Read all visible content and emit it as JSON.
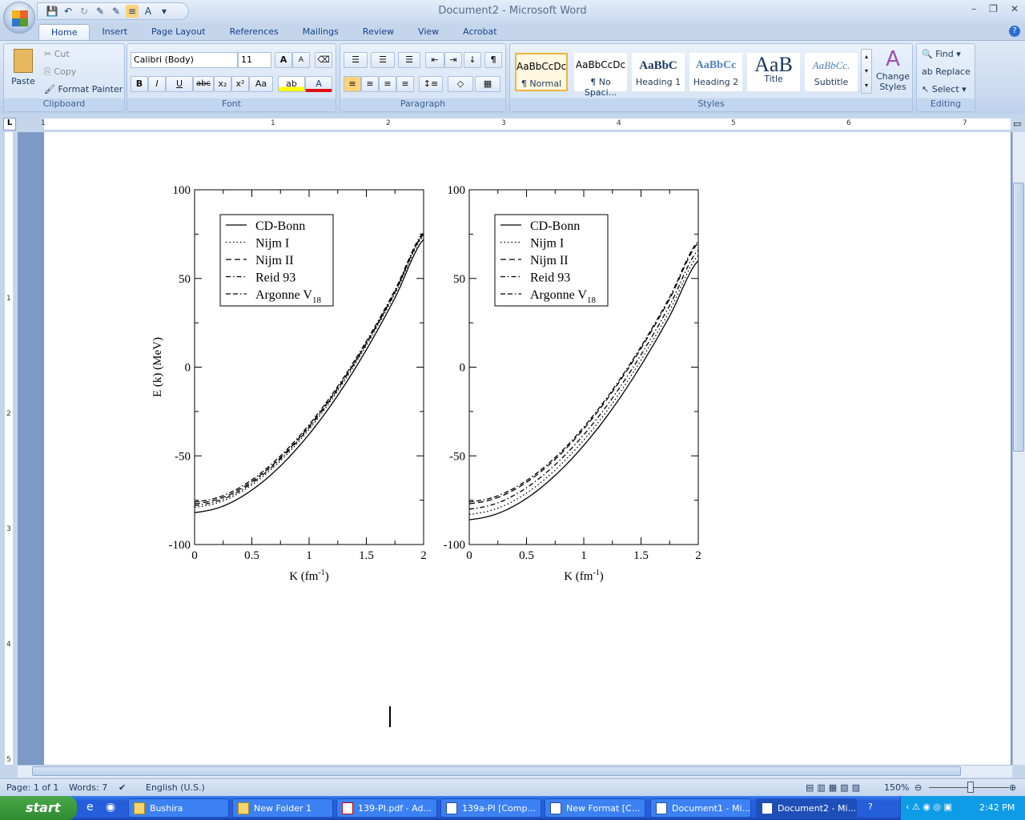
{
  "window": {
    "title": "Document2 - Microsoft Word",
    "controls": [
      "–",
      "❐",
      "✕"
    ]
  },
  "qat": [
    "save",
    "undo",
    "redo",
    "draw",
    "draw2",
    "align",
    "style"
  ],
  "tabs": [
    "Home",
    "Insert",
    "Page Layout",
    "References",
    "Mailings",
    "Review",
    "View",
    "Acrobat"
  ],
  "clipboard": {
    "paste": "Paste",
    "cut": "Cut",
    "copy": "Copy",
    "format_painter": "Format Painter",
    "label": "Clipboard"
  },
  "font": {
    "name": "Calibri (Body)",
    "size": "11",
    "label": "Font",
    "bold": "B",
    "italic": "I",
    "underline": "U",
    "strike": "abc",
    "sub": "x₂",
    "sup": "x²",
    "case": "Aa",
    "grow": "A",
    "shrink": "A",
    "color": "#e01010"
  },
  "paragraph": {
    "label": "Paragraph",
    "pilcrow": "¶"
  },
  "styles": {
    "label": "Styles",
    "items": [
      {
        "preview": "AaBbCcDc",
        "name": "¶ Normal"
      },
      {
        "preview": "AaBbCcDc",
        "name": "¶ No Spaci..."
      },
      {
        "preview": "AaBbC",
        "name": "Heading 1"
      },
      {
        "preview": "AaBbCc",
        "name": "Heading 2"
      },
      {
        "preview": "AaB",
        "name": "Title"
      },
      {
        "preview": "AaBbCc.",
        "name": "Subtitle"
      }
    ],
    "change_styles": "Change Styles"
  },
  "editing": {
    "label": "Editing",
    "find": "Find",
    "replace": "Replace",
    "select": "Select"
  },
  "ruler": {
    "h": [
      "1",
      "1",
      "2",
      "3",
      "4",
      "5",
      "6",
      "7"
    ],
    "v": [
      "1",
      "2",
      "3",
      "4",
      "5"
    ]
  },
  "chart_data": [
    {
      "type": "line",
      "xlabel": "K (fm",
      "xlabel_sup": "-1",
      "xlabel_end": ")",
      "ylabel": "E (k) (MeV)",
      "xlim": [
        0,
        2
      ],
      "ylim": [
        -100,
        100
      ],
      "xticks": [
        "0",
        "0.5",
        "1",
        "1.5",
        "2"
      ],
      "yticks": [
        "-100",
        "-50",
        "0",
        "50",
        "100"
      ],
      "legend": "top-left",
      "x": [
        0,
        0.25,
        0.5,
        0.75,
        1,
        1.25,
        1.5,
        1.75,
        2
      ],
      "series": [
        {
          "name": "CD-Bonn",
          "values": [
            -82,
            -78.3,
            -69.3,
            -55.7,
            -37.8,
            -15.9,
            9.8,
            39.1,
            72
          ]
        },
        {
          "name": "Nijm I",
          "values": [
            -79,
            -75.4,
            -66.4,
            -52.8,
            -35.1,
            -13.4,
            12.2,
            41.3,
            74
          ]
        },
        {
          "name": "Nijm II",
          "values": [
            -77,
            -73.4,
            -64.5,
            -51,
            -33.4,
            -11.8,
            13.6,
            42.5,
            75
          ]
        },
        {
          "name": "Reid 93",
          "values": [
            -78,
            -74.4,
            -65.4,
            -51.8,
            -34.1,
            -12.4,
            13.2,
            42.3,
            75
          ]
        },
        {
          "name": "Argonne V",
          "name_sub": "18",
          "values": [
            -76,
            -72.4,
            -63.5,
            -50,
            -32.4,
            -10.8,
            14.6,
            43.5,
            76
          ]
        }
      ]
    },
    {
      "type": "line",
      "xlabel": "K (fm",
      "xlabel_sup": "-1",
      "xlabel_end": ")",
      "ylabel": "",
      "xlim": [
        0,
        2
      ],
      "ylim": [
        -100,
        100
      ],
      "xticks": [
        "0",
        "0.5",
        "1",
        "1.5",
        "2"
      ],
      "yticks": [
        "-100",
        "-50",
        "0",
        "50",
        "100"
      ],
      "legend": "top-left",
      "x": [
        0,
        0.25,
        0.5,
        0.75,
        1,
        1.25,
        1.5,
        1.75,
        2
      ],
      "series": [
        {
          "name": "CD-Bonn",
          "values": [
            -86,
            -82.5,
            -74,
            -61,
            -44.1,
            -23.4,
            1,
            28.8,
            60
          ]
        },
        {
          "name": "Nijm I",
          "values": [
            -83,
            -79.5,
            -71,
            -58,
            -41.1,
            -20.4,
            4,
            31.8,
            63
          ]
        },
        {
          "name": "Nijm II",
          "values": [
            -77,
            -73.5,
            -64.9,
            -51.9,
            -34.8,
            -13.9,
            10.6,
            38.5,
            70
          ]
        },
        {
          "name": "Reid 93",
          "values": [
            -80,
            -76.5,
            -68,
            -55,
            -38.1,
            -17.4,
            7,
            34.8,
            66
          ]
        },
        {
          "name": "Argonne V",
          "name_sub": "18",
          "values": [
            -76,
            -72.5,
            -63.9,
            -50.9,
            -33.8,
            -12.9,
            11.6,
            39.5,
            71
          ]
        }
      ]
    }
  ],
  "status": {
    "page": "Page: 1 of 1",
    "words": "Words: 7",
    "language": "English (U.S.)",
    "zoom": "150%"
  },
  "taskbar": {
    "start": "start",
    "tasks": [
      "Bushira",
      "New Folder 1",
      "139-PI.pdf - Ad...",
      "139a-PI [Comp...",
      "New Format [C...",
      "Document1 - Mi...",
      "Document2 - Mi..."
    ],
    "clock": "2:42 PM"
  }
}
